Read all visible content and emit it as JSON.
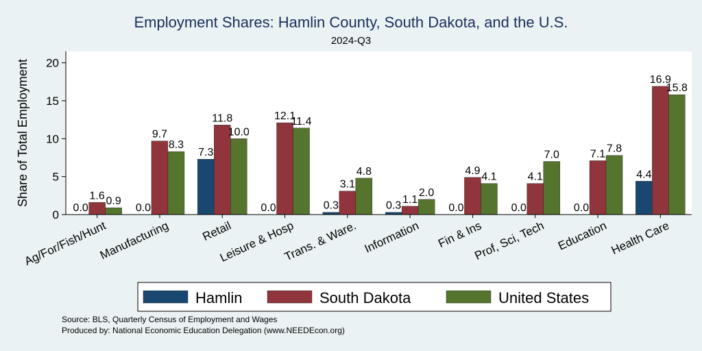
{
  "chart_data": {
    "type": "bar",
    "title": "Employment Shares: Hamlin County, South Dakota, and the U.S.",
    "subtitle": "2024-Q3",
    "ylabel": "Share of Total Employment",
    "xlabel": "",
    "ylim": [
      0,
      21.5
    ],
    "yticks": [
      0,
      5,
      10,
      15,
      20
    ],
    "grid": false,
    "legend_position": "bottom",
    "categories": [
      "Ag/For/Fish/Hunt",
      "Manufacturing",
      "Retail",
      "Leisure & Hosp",
      "Trans. & Ware.",
      "Information",
      "Fin & Ins",
      "Prof, Sci, Tech",
      "Education",
      "Health Care"
    ],
    "series": [
      {
        "name": "Hamlin",
        "color": "#1a476f",
        "values": [
          0.0,
          0.0,
          7.3,
          0.0,
          0.3,
          0.3,
          0.0,
          0.0,
          0.0,
          4.4
        ]
      },
      {
        "name": "South Dakota",
        "color": "#90353b",
        "values": [
          1.6,
          9.7,
          11.8,
          12.1,
          3.1,
          1.1,
          4.9,
          4.1,
          7.1,
          16.9
        ]
      },
      {
        "name": "United States",
        "color": "#55752f",
        "values": [
          0.9,
          8.3,
          10.0,
          11.4,
          4.8,
          2.0,
          4.1,
          7.0,
          7.8,
          15.8
        ]
      }
    ],
    "sources": [
      "Source: BLS, Quarterly Census of Employment and Wages",
      "Produced by: National Economic Education Delegation (www.NEEDEcon.org)"
    ]
  }
}
